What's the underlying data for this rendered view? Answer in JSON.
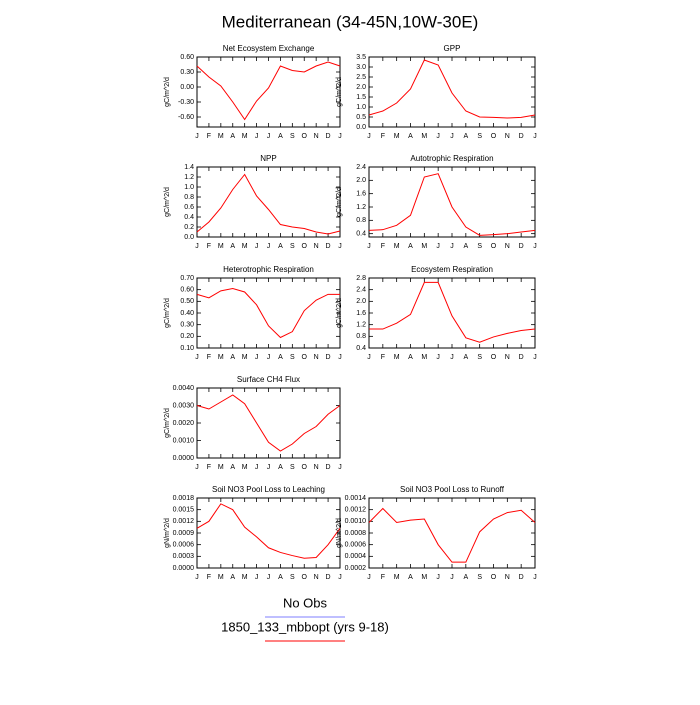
{
  "title": "Mediterranean (34-45N,10W-30E)",
  "legend": [
    {
      "label": "No Obs",
      "color": "#7f7fff"
    },
    {
      "label": "1850_133_mbbopt (yrs 9-18)",
      "color": "#ff0000"
    }
  ],
  "chart_data": [
    {
      "type": "line",
      "title": "Net Ecosystem Exchange",
      "ylabel": "gC/m^2/d",
      "categories": [
        "J",
        "F",
        "M",
        "A",
        "M",
        "J",
        "J",
        "A",
        "S",
        "O",
        "N",
        "D",
        "J"
      ],
      "values": [
        0.42,
        0.2,
        0.02,
        -0.3,
        -0.65,
        -0.28,
        -0.02,
        0.42,
        0.33,
        0.3,
        0.42,
        0.5,
        0.42
      ],
      "color": "#ff0000",
      "ylim": [
        -0.8,
        0.6
      ],
      "yticks": [
        {
          "value": -0.6,
          "label": "-0.60"
        },
        {
          "value": -0.3,
          "label": "-0.30"
        },
        {
          "value": 0,
          "label": "0.00"
        },
        {
          "value": 0.3,
          "label": "0.30"
        },
        {
          "value": 0.6,
          "label": "0.60"
        }
      ]
    },
    {
      "type": "line",
      "title": "GPP",
      "ylabel": "gC/m^2/d",
      "categories": [
        "J",
        "F",
        "M",
        "A",
        "M",
        "J",
        "J",
        "A",
        "S",
        "O",
        "N",
        "D",
        "J"
      ],
      "values": [
        0.6,
        0.8,
        1.2,
        1.9,
        3.35,
        3.1,
        1.7,
        0.8,
        0.5,
        0.48,
        0.45,
        0.48,
        0.6
      ],
      "color": "#ff0000",
      "ylim": [
        0,
        3.5
      ],
      "yticks": [
        {
          "value": 0,
          "label": "0.0"
        },
        0.5,
        {
          "value": 1,
          "label": "1.0"
        },
        1.5,
        {
          "value": 2,
          "label": "2.0"
        },
        2.5,
        {
          "value": 3,
          "label": "3.0"
        },
        3.5
      ]
    },
    {
      "type": "line",
      "title": "NPP",
      "ylabel": "gC/m^2/d",
      "categories": [
        "J",
        "F",
        "M",
        "A",
        "M",
        "J",
        "J",
        "A",
        "S",
        "O",
        "N",
        "D",
        "J"
      ],
      "values": [
        0.1,
        0.3,
        0.58,
        0.95,
        1.25,
        0.82,
        0.55,
        0.25,
        0.2,
        0.17,
        0.1,
        0.06,
        0.12
      ],
      "color": "#ff0000",
      "ylim": [
        0,
        1.4
      ],
      "yticks": [
        {
          "value": 0,
          "label": "0.0"
        },
        0.2,
        0.4,
        0.6,
        0.8,
        {
          "value": 1,
          "label": "1.0"
        },
        1.2,
        1.4
      ]
    },
    {
      "type": "line",
      "title": "Autotrophic Respiration",
      "ylabel": "gC/m^2/d",
      "categories": [
        "J",
        "F",
        "M",
        "A",
        "M",
        "J",
        "J",
        "A",
        "S",
        "O",
        "N",
        "D",
        "J"
      ],
      "values": [
        0.5,
        0.52,
        0.65,
        0.95,
        2.1,
        2.2,
        1.2,
        0.6,
        0.35,
        0.37,
        0.4,
        0.45,
        0.5
      ],
      "color": "#ff0000",
      "ylim": [
        0.3,
        2.4
      ],
      "yticks": [
        0.4,
        0.8,
        1.2,
        1.6,
        {
          "value": 2,
          "label": "2.0"
        },
        2.4
      ]
    },
    {
      "type": "line",
      "title": "Heterotrophic Respiration",
      "ylabel": "gC/m^2/d",
      "categories": [
        "J",
        "F",
        "M",
        "A",
        "M",
        "J",
        "J",
        "A",
        "S",
        "O",
        "N",
        "D",
        "J"
      ],
      "values": [
        0.56,
        0.53,
        0.59,
        0.61,
        0.58,
        0.47,
        0.29,
        0.19,
        0.24,
        0.42,
        0.51,
        0.56,
        0.56
      ],
      "color": "#ff0000",
      "ylim": [
        0.1,
        0.7
      ],
      "yticks": [
        {
          "value": 0.1,
          "label": "0.10"
        },
        {
          "value": 0.2,
          "label": "0.20"
        },
        {
          "value": 0.3,
          "label": "0.30"
        },
        {
          "value": 0.4,
          "label": "0.40"
        },
        {
          "value": 0.5,
          "label": "0.50"
        },
        {
          "value": 0.6,
          "label": "0.60"
        },
        {
          "value": 0.7,
          "label": "0.70"
        }
      ]
    },
    {
      "type": "line",
      "title": "Ecosystem Respiration",
      "ylabel": "gC/m^2/d",
      "categories": [
        "J",
        "F",
        "M",
        "A",
        "M",
        "J",
        "J",
        "A",
        "S",
        "O",
        "N",
        "D",
        "J"
      ],
      "values": [
        1.05,
        1.05,
        1.25,
        1.55,
        2.65,
        2.65,
        1.5,
        0.75,
        0.6,
        0.78,
        0.9,
        1.0,
        1.05
      ],
      "color": "#ff0000",
      "ylim": [
        0.4,
        2.8
      ],
      "yticks": [
        0.4,
        0.8,
        1.2,
        1.6,
        {
          "value": 2,
          "label": "2.0"
        },
        2.4,
        2.8
      ]
    },
    {
      "type": "line",
      "title": "Surface CH4 Flux",
      "ylabel": "gC/m^2/d",
      "categories": [
        "J",
        "F",
        "M",
        "A",
        "M",
        "J",
        "J",
        "A",
        "S",
        "O",
        "N",
        "D",
        "J"
      ],
      "values": [
        0.003,
        0.0028,
        0.0032,
        0.0036,
        0.0031,
        0.002,
        0.0009,
        0.0004,
        0.0008,
        0.0014,
        0.0018,
        0.0025,
        0.003
      ],
      "color": "#ff0000",
      "ylim": [
        0,
        0.004
      ],
      "yticks": [
        {
          "value": 0,
          "label": "0.0000"
        },
        {
          "value": 0.001,
          "label": "0.0010"
        },
        {
          "value": 0.002,
          "label": "0.0020"
        },
        {
          "value": 0.003,
          "label": "0.0030"
        },
        {
          "value": 0.004,
          "label": "0.0040"
        }
      ]
    },
    {
      "type": "line",
      "title": "Soil NO3 Pool Loss to Leaching",
      "ylabel": "gN/m^2/d",
      "categories": [
        "J",
        "F",
        "M",
        "A",
        "M",
        "J",
        "J",
        "A",
        "S",
        "O",
        "N",
        "D",
        "J"
      ],
      "values": [
        0.00102,
        0.0012,
        0.00165,
        0.0015,
        0.00105,
        0.0008,
        0.00052,
        0.0004,
        0.00032,
        0.00025,
        0.00027,
        0.0006,
        0.00102
      ],
      "color": "#ff0000",
      "ylim": [
        0,
        0.0018
      ],
      "yticks": [
        {
          "value": 0,
          "label": "0.0000"
        },
        0.0003,
        0.0006,
        0.0009,
        0.0012,
        0.0015,
        0.0018
      ]
    },
    {
      "type": "line",
      "title": "Soil NO3 Pool Loss to Runoff",
      "ylabel": "gN/m^2/d",
      "categories": [
        "J",
        "F",
        "M",
        "A",
        "M",
        "J",
        "J",
        "A",
        "S",
        "O",
        "N",
        "D",
        "J"
      ],
      "values": [
        0.00098,
        0.00122,
        0.00098,
        0.00102,
        0.00104,
        0.0006,
        0.0003,
        0.0003,
        0.00082,
        0.00104,
        0.00115,
        0.00119,
        0.00098
      ],
      "color": "#ff0000",
      "ylim": [
        0.0002,
        0.0014
      ],
      "yticks": [
        0.0002,
        0.0004,
        0.0006,
        0.0008,
        {
          "value": 0.001,
          "label": "0.0010"
        },
        0.0012,
        0.0014
      ]
    }
  ]
}
